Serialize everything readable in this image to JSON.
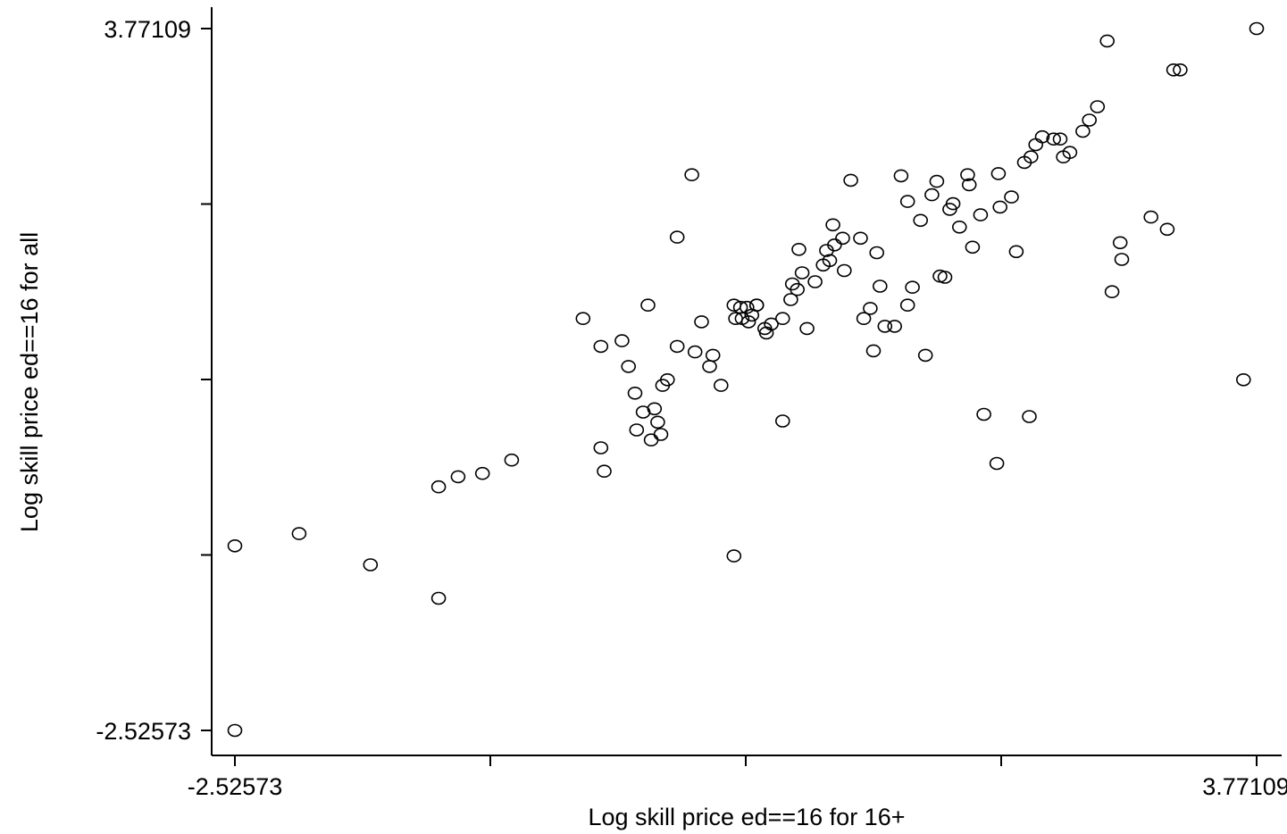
{
  "chart_data": {
    "type": "scatter",
    "xlabel": "Log skill price ed==16 for 16+",
    "ylabel": "Log skill price ed==16 for all",
    "xlim": [
      -2.52573,
      3.77109
    ],
    "ylim": [
      -2.52573,
      3.77109
    ],
    "x_tick_labels": [
      "-2.52573",
      "3.77109"
    ],
    "y_tick_labels": [
      "3.77109",
      "-2.52573"
    ],
    "x_ticks": [
      -2.52573,
      -0.95153,
      0.62268,
      2.19688,
      3.77109
    ],
    "y_ticks": [
      -2.52573,
      -0.95153,
      0.62268,
      2.19688,
      3.77109
    ],
    "grid": false,
    "marker": "hollow-circle",
    "marker_color": "#000000",
    "points": [
      [
        -2.52573,
        -2.52573
      ],
      [
        -2.52573,
        -0.87
      ],
      [
        -2.13,
        -0.76
      ],
      [
        -1.69,
        -1.04
      ],
      [
        -1.27,
        -0.34
      ],
      [
        -1.27,
        -1.34
      ],
      [
        -1.15,
        -0.25
      ],
      [
        -0.82,
        -0.1
      ],
      [
        -0.38,
        1.17
      ],
      [
        -0.27,
        0.92
      ],
      [
        -0.27,
        0.01
      ],
      [
        -0.25,
        -0.2
      ],
      [
        -0.14,
        0.97
      ],
      [
        -0.1,
        0.74
      ],
      [
        -0.06,
        0.5
      ],
      [
        -0.05,
        0.17
      ],
      [
        0.02,
        1.29
      ],
      [
        -0.01,
        0.33
      ],
      [
        0.06,
        0.36
      ],
      [
        0.11,
        0.57
      ],
      [
        0.08,
        0.24
      ],
      [
        0.04,
        0.08
      ],
      [
        0.14,
        0.62
      ],
      [
        0.1,
        0.13
      ],
      [
        0.2,
        1.9
      ],
      [
        0.2,
        0.92
      ],
      [
        0.29,
        2.46
      ],
      [
        0.31,
        0.87
      ],
      [
        0.35,
        1.14
      ],
      [
        0.4,
        0.74
      ],
      [
        0.42,
        0.84
      ],
      [
        0.47,
        0.57
      ],
      [
        0.55,
        1.29
      ],
      [
        0.55,
        -0.96
      ],
      [
        0.6,
        1.17
      ],
      [
        0.64,
        1.14
      ],
      [
        0.56,
        1.17
      ],
      [
        0.59,
        1.27
      ],
      [
        0.63,
        1.27
      ],
      [
        0.66,
        1.2
      ],
      [
        0.69,
        1.29
      ],
      [
        0.69,
        1.29
      ],
      [
        0.74,
        1.08
      ],
      [
        0.75,
        1.04
      ],
      [
        0.78,
        1.12
      ],
      [
        0.85,
        1.17
      ],
      [
        0.85,
        0.25
      ],
      [
        0.9,
        1.34
      ],
      [
        0.91,
        1.48
      ],
      [
        0.94,
        1.43
      ],
      [
        0.95,
        1.79
      ],
      [
        0.97,
        1.58
      ],
      [
        1.0,
        1.08
      ],
      [
        1.05,
        1.5
      ],
      [
        1.1,
        1.65
      ],
      [
        1.14,
        1.69
      ],
      [
        1.12,
        1.78
      ],
      [
        1.16,
        2.01
      ],
      [
        1.17,
        1.83
      ],
      [
        1.22,
        1.89
      ],
      [
        1.23,
        1.6
      ],
      [
        1.27,
        2.41
      ],
      [
        1.33,
        1.89
      ],
      [
        1.39,
        1.26
      ],
      [
        1.35,
        1.17
      ],
      [
        1.43,
        1.76
      ],
      [
        1.45,
        1.46
      ],
      [
        1.48,
        1.1
      ],
      [
        1.41,
        0.88
      ],
      [
        1.54,
        1.1
      ],
      [
        1.58,
        2.45
      ],
      [
        1.62,
        2.22
      ],
      [
        1.62,
        1.29
      ],
      [
        1.65,
        1.45
      ],
      [
        1.7,
        2.05
      ],
      [
        1.73,
        0.84
      ],
      [
        1.77,
        2.28
      ],
      [
        1.8,
        2.4
      ],
      [
        1.82,
        1.55
      ],
      [
        1.85,
        1.54
      ],
      [
        1.88,
        2.15
      ],
      [
        1.9,
        2.2
      ],
      [
        1.94,
        1.99
      ],
      [
        2.0,
        2.37
      ],
      [
        1.99,
        2.46
      ],
      [
        2.02,
        1.81
      ],
      [
        2.07,
        2.1
      ],
      [
        2.09,
        0.31
      ],
      [
        2.18,
        2.47
      ],
      [
        2.19,
        2.17
      ],
      [
        2.17,
        -0.13
      ],
      [
        2.26,
        2.26
      ],
      [
        2.29,
        1.77
      ],
      [
        2.34,
        2.57
      ],
      [
        2.38,
        2.62
      ],
      [
        2.37,
        0.29
      ],
      [
        2.41,
        2.73
      ],
      [
        2.45,
        2.8
      ],
      [
        2.52,
        2.78
      ],
      [
        2.58,
        2.62
      ],
      [
        2.56,
        2.78
      ],
      [
        2.62,
        2.66
      ],
      [
        2.7,
        2.85
      ],
      [
        2.74,
        2.95
      ],
      [
        2.79,
        3.07
      ],
      [
        2.85,
        3.66
      ],
      [
        2.88,
        1.41
      ],
      [
        2.93,
        1.85
      ],
      [
        2.94,
        1.7
      ],
      [
        3.12,
        2.08
      ],
      [
        3.22,
        1.97
      ],
      [
        3.3,
        3.4
      ],
      [
        3.26,
        3.4
      ],
      [
        3.69,
        0.62
      ],
      [
        3.77109,
        3.77109
      ],
      [
        -1.0,
        -0.22
      ]
    ]
  }
}
